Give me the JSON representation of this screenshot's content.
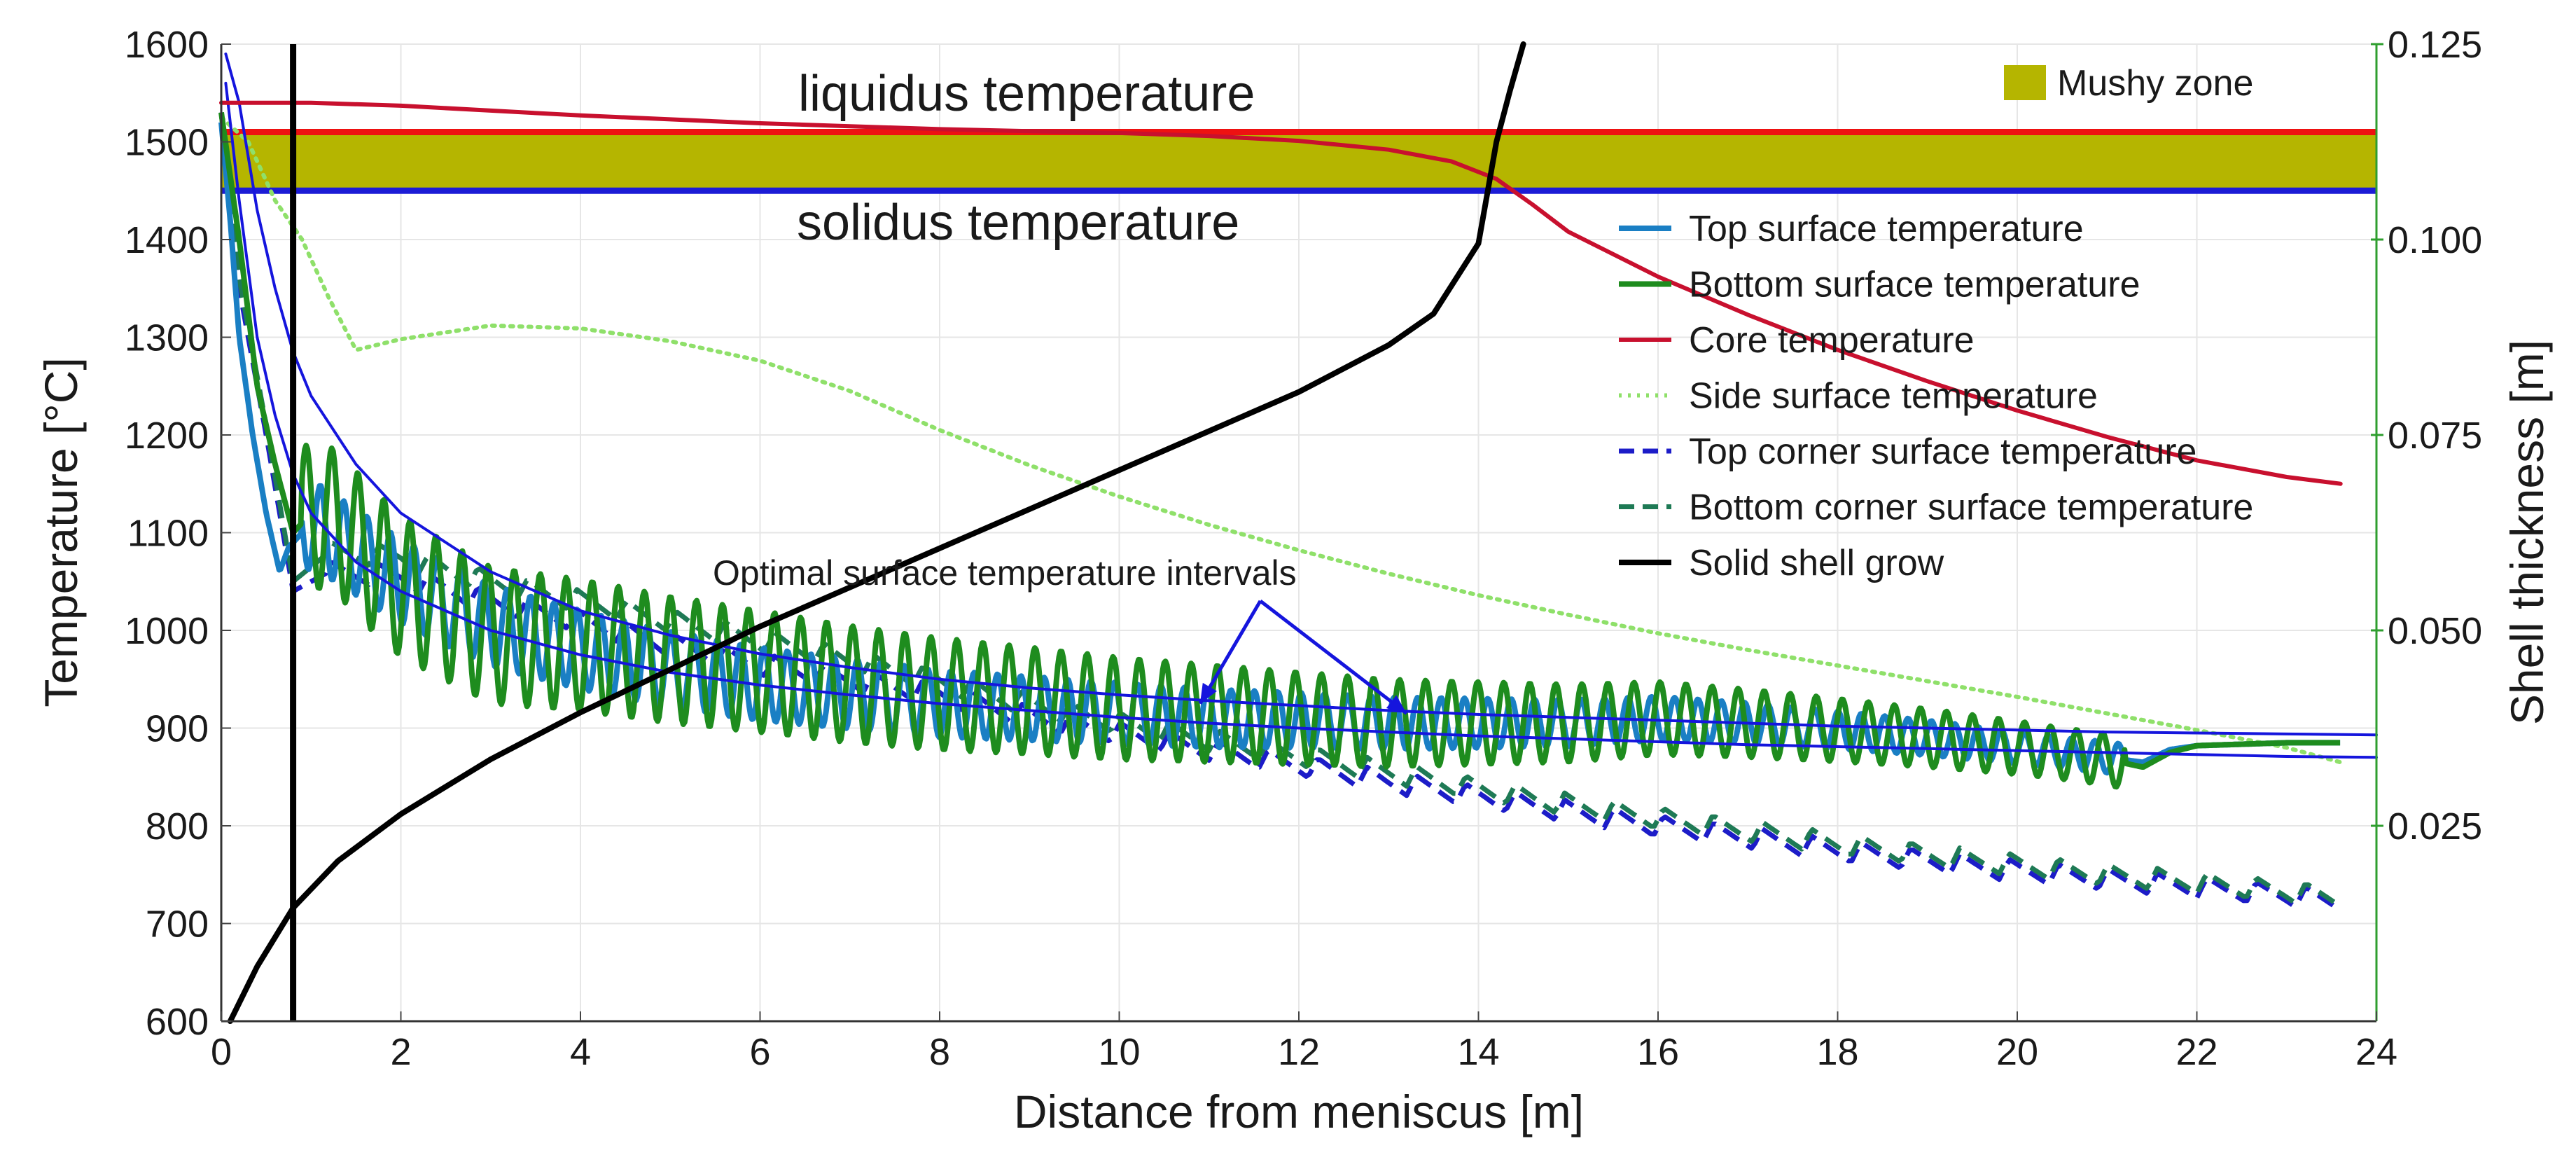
{
  "chart_data": {
    "type": "line",
    "xlabel": "Distance from meniscus [m]",
    "ylabel": "Temperature [°C]",
    "y2label": "Shell thickness [m]",
    "xlim": [
      0,
      24
    ],
    "ylim": [
      600,
      1600
    ],
    "y2lim": [
      0.0,
      0.125
    ],
    "grid": true,
    "legend_position": "right",
    "x_ticks": [
      "0",
      "2",
      "4",
      "6",
      "8",
      "10",
      "12",
      "14",
      "16",
      "18",
      "20",
      "22",
      "24"
    ],
    "y_ticks": [
      "600",
      "700",
      "800",
      "900",
      "1000",
      "1100",
      "1200",
      "1300",
      "1400",
      "1500",
      "1600"
    ],
    "y2_ticks": [
      "0.025",
      "0.050",
      "0.075",
      "0.100",
      "0.125"
    ],
    "colors": {
      "top_surface": "#1a7fc4",
      "bottom_surface": "#1e8c1e",
      "core": "#c8102e",
      "side_surface": "#8fe06a",
      "top_corner": "#1c1cc8",
      "bottom_corner": "#1e7a55",
      "shell": "#000000",
      "mushy": "#b5b500",
      "liquidus": "#ee1111",
      "solidus": "#1c1cd6",
      "interval": "#1515dd"
    },
    "mushy_zone": {
      "label": "Mushy zone",
      "y_range": [
        1450,
        1510
      ]
    },
    "liquidus": {
      "label": "liquidus temperature",
      "value": 1510
    },
    "solidus": {
      "label": "solidus temperature",
      "value": 1450
    },
    "vertical_line_x": 0.8,
    "annotation": {
      "text": "Optimal surface temperature intervals",
      "arrow_targets": [
        [
          10.9,
          925
        ],
        [
          13.2,
          915
        ]
      ]
    },
    "legend": [
      "Top surface temperature",
      "Bottom surface temperature",
      "Core temperature",
      "Side surface temperature",
      "Top corner surface temperature",
      "Bottom corner surface temperature",
      "Solid shell grow"
    ],
    "series": [
      {
        "name": "Core temperature",
        "axis": "left",
        "x": [
          0,
          1,
          2,
          3,
          4,
          5,
          6,
          7,
          8,
          9,
          10,
          11,
          12,
          13,
          13.7,
          14.2,
          14.6,
          15,
          16,
          17,
          18,
          19,
          20,
          21,
          22,
          23,
          23.6
        ],
        "y": [
          1540,
          1540,
          1537,
          1532,
          1527,
          1523,
          1519,
          1516,
          1513,
          1511,
          1509,
          1506,
          1501,
          1492,
          1480,
          1462,
          1436,
          1408,
          1362,
          1323,
          1287,
          1255,
          1225,
          1198,
          1174,
          1157,
          1150
        ]
      },
      {
        "name": "Side surface temperature",
        "axis": "left",
        "x": [
          0,
          0.3,
          0.6,
          0.9,
          1.2,
          1.5,
          2,
          3,
          4,
          5,
          6,
          7,
          8,
          9,
          10,
          11,
          12,
          13,
          14,
          15,
          16,
          17,
          18,
          19,
          20,
          21,
          22,
          23,
          23.6
        ],
        "y": [
          1525,
          1500,
          1440,
          1400,
          1340,
          1287,
          1298,
          1312,
          1309,
          1296,
          1276,
          1245,
          1205,
          1169,
          1137,
          1108,
          1082,
          1058,
          1036,
          1016,
          997,
          980,
          964,
          948,
          932,
          915,
          898,
          880,
          865
        ]
      },
      {
        "name": "Top surface temperature",
        "axis": "left",
        "x": [
          0,
          0.1,
          0.2,
          0.35,
          0.5,
          0.65,
          0.75,
          1,
          1.5,
          2,
          3,
          4,
          5,
          6,
          7,
          8,
          9,
          10,
          11,
          12,
          13,
          14,
          15,
          16,
          17,
          18,
          19,
          20,
          21,
          21.4,
          21.7,
          22,
          23,
          23.6
        ],
        "y": [
          1520,
          1420,
          1300,
          1200,
          1120,
          1060,
          1085,
          1110,
          1080,
          1050,
          1005,
          980,
          960,
          945,
          935,
          925,
          920,
          915,
          910,
          908,
          905,
          905,
          905,
          910,
          905,
          898,
          890,
          880,
          870,
          865,
          878,
          882,
          885,
          885
        ]
      },
      {
        "name": "Bottom surface temperature",
        "axis": "left",
        "x": [
          0,
          0.2,
          0.4,
          0.6,
          0.8,
          1,
          1.3,
          1.6,
          2,
          2.5,
          3,
          4,
          5,
          6,
          7,
          8,
          9,
          10,
          11,
          12,
          13,
          14,
          15,
          16,
          17,
          18,
          19,
          20,
          21,
          21.4,
          21.7,
          22,
          23,
          23.6
        ],
        "y": [
          1530,
          1400,
          1250,
          1170,
          1100,
          1120,
          1110,
          1080,
          1045,
          1020,
          995,
          985,
          970,
          958,
          945,
          935,
          928,
          920,
          915,
          910,
          905,
          905,
          905,
          910,
          905,
          898,
          890,
          880,
          868,
          860,
          875,
          882,
          885,
          885
        ]
      },
      {
        "name": "Top corner surface temperature",
        "axis": "left",
        "x": [
          0,
          0.2,
          0.5,
          0.8,
          1.2,
          2,
          3,
          4,
          5,
          6,
          7,
          8,
          9,
          10,
          11,
          12,
          13,
          14,
          15,
          16,
          17,
          18,
          19,
          20,
          21,
          22,
          23,
          23.6
        ],
        "y": [
          1530,
          1350,
          1200,
          1040,
          1060,
          1055,
          1030,
          1010,
          985,
          965,
          950,
          935,
          912,
          895,
          878,
          862,
          845,
          830,
          815,
          800,
          788,
          775,
          764,
          754,
          745,
          737,
          729,
          722
        ]
      },
      {
        "name": "Bottom corner surface temperature",
        "axis": "left",
        "x": [
          0,
          0.2,
          0.5,
          0.8,
          1.2,
          2,
          3,
          4,
          5,
          6,
          7,
          8,
          9,
          10,
          11,
          12,
          13,
          14,
          15,
          16,
          17,
          18,
          19,
          20,
          21,
          22,
          23,
          23.6
        ],
        "y": [
          1530,
          1360,
          1210,
          1050,
          1080,
          1075,
          1050,
          1030,
          1010,
          990,
          970,
          948,
          925,
          905,
          888,
          872,
          855,
          838,
          822,
          808,
          795,
          782,
          770,
          760,
          750,
          742,
          733,
          726
        ]
      },
      {
        "name": "Optimal interval upper bound",
        "axis": "left",
        "x": [
          0.05,
          0.2,
          0.4,
          0.6,
          0.8,
          1,
          1.5,
          2,
          3,
          4,
          5,
          6,
          7,
          8,
          9,
          10,
          11,
          12,
          13,
          14,
          15,
          16,
          17,
          18,
          19,
          20,
          21,
          22,
          23,
          24
        ],
        "y": [
          1590,
          1540,
          1430,
          1350,
          1285,
          1240,
          1170,
          1120,
          1060,
          1020,
          995,
          976,
          962,
          950,
          941,
          934,
          928,
          923,
          918,
          914,
          911,
          908,
          905,
          902,
          900,
          898,
          896,
          895,
          894,
          893
        ]
      },
      {
        "name": "Optimal interval lower bound",
        "axis": "left",
        "x": [
          0.05,
          0.2,
          0.4,
          0.6,
          0.8,
          1,
          1.5,
          2,
          3,
          4,
          5,
          6,
          7,
          8,
          9,
          10,
          11,
          12,
          13,
          14,
          15,
          16,
          17,
          18,
          19,
          20,
          21,
          22,
          23,
          24
        ],
        "y": [
          1560,
          1440,
          1300,
          1220,
          1160,
          1120,
          1070,
          1040,
          1000,
          975,
          957,
          944,
          934,
          925,
          918,
          911,
          905,
          900,
          896,
          892,
          889,
          886,
          883,
          881,
          879,
          877,
          875,
          873,
          871,
          870
        ]
      },
      {
        "name": "Solid shell grow",
        "axis": "right",
        "x": [
          0.1,
          0.4,
          0.8,
          1.3,
          2,
          3,
          4,
          5,
          6,
          7,
          8,
          9,
          10,
          11,
          12,
          13,
          13.5,
          14,
          14.2,
          14.35,
          14.5
        ],
        "y": [
          0.0,
          0.007,
          0.0145,
          0.0205,
          0.0265,
          0.0335,
          0.0395,
          0.045,
          0.0505,
          0.0555,
          0.0605,
          0.0655,
          0.0705,
          0.0755,
          0.0805,
          0.0865,
          0.0905,
          0.0995,
          0.1125,
          0.119,
          0.125
        ]
      }
    ]
  }
}
